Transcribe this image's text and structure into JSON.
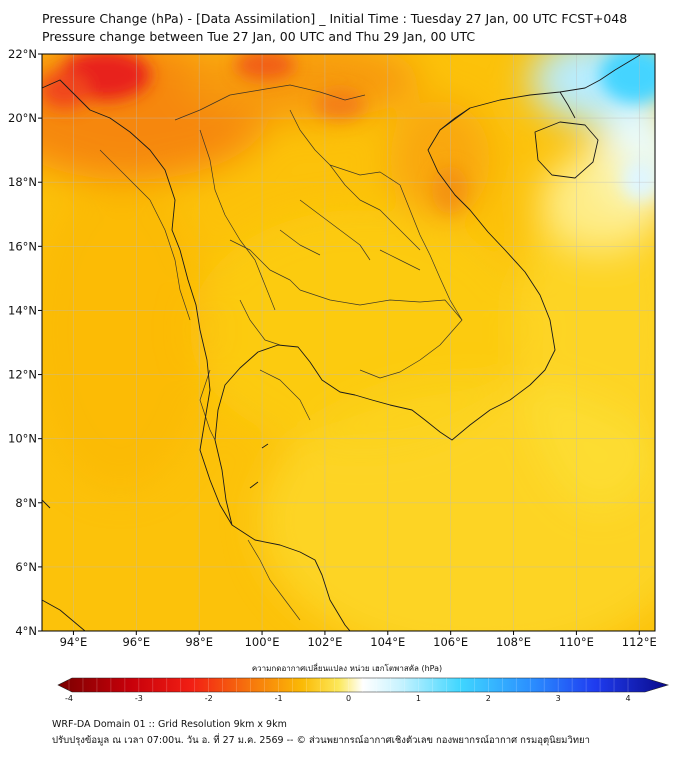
{
  "title_line1": "Pressure Change (hPa) - [Data Assimilation] _ Initial Time : Tuesday 27 Jan, 00 UTC FCST+048",
  "title_line2": "Pressure change between Tue 27 Jan, 00 UTC and Thu 29 Jan, 00 UTC",
  "map": {
    "lat_range": [
      4,
      22
    ],
    "lon_range": [
      93,
      112.5
    ],
    "lat_ticks": [
      "4°N",
      "6°N",
      "8°N",
      "10°N",
      "12°N",
      "14°N",
      "16°N",
      "18°N",
      "20°N",
      "22°N"
    ],
    "lon_ticks": [
      "94°E",
      "96°E",
      "98°E",
      "100°E",
      "102°E",
      "104°E",
      "106°E",
      "108°E",
      "110°E",
      "112°E"
    ],
    "gridlines": true,
    "field_description_hint": "dominant values near -1.5 to -2 hPa; strongest fall ~-3 hPa near 22N 95E; rises near +0.5 hPa east of Hainan"
  },
  "colorbar": {
    "title": "ความกดอากาศเปลี่ยนแปลง หน่วย เฮกโตพาสคัล (hPa)",
    "range": [
      -4,
      4
    ],
    "tick_labels": [
      "-4",
      "-3",
      "-2",
      "-1",
      "0",
      "1",
      "2",
      "3",
      "4"
    ],
    "colors": {
      "min": "#7a0000",
      "red": "#e8141a",
      "orange": "#f58a0a",
      "yellow": "#fce200",
      "white": "#ffffff",
      "cyan": "#3fd6ff",
      "blue": "#1f5cff",
      "max": "#0a0a8a"
    }
  },
  "footer_line1": "WRF-DA Domain 01 :: Grid Resolution 9km x 9km",
  "footer_line2": "ปรับปรุงข้อมูล ณ เวลา 07:00น. วัน อ. ที่ 27 ม.ค. 2569 -- © ส่วนพยากรณ์อากาศเชิงตัวเลข กองพยากรณ์อากาศ กรมอุตุนิยมวิทยา"
}
